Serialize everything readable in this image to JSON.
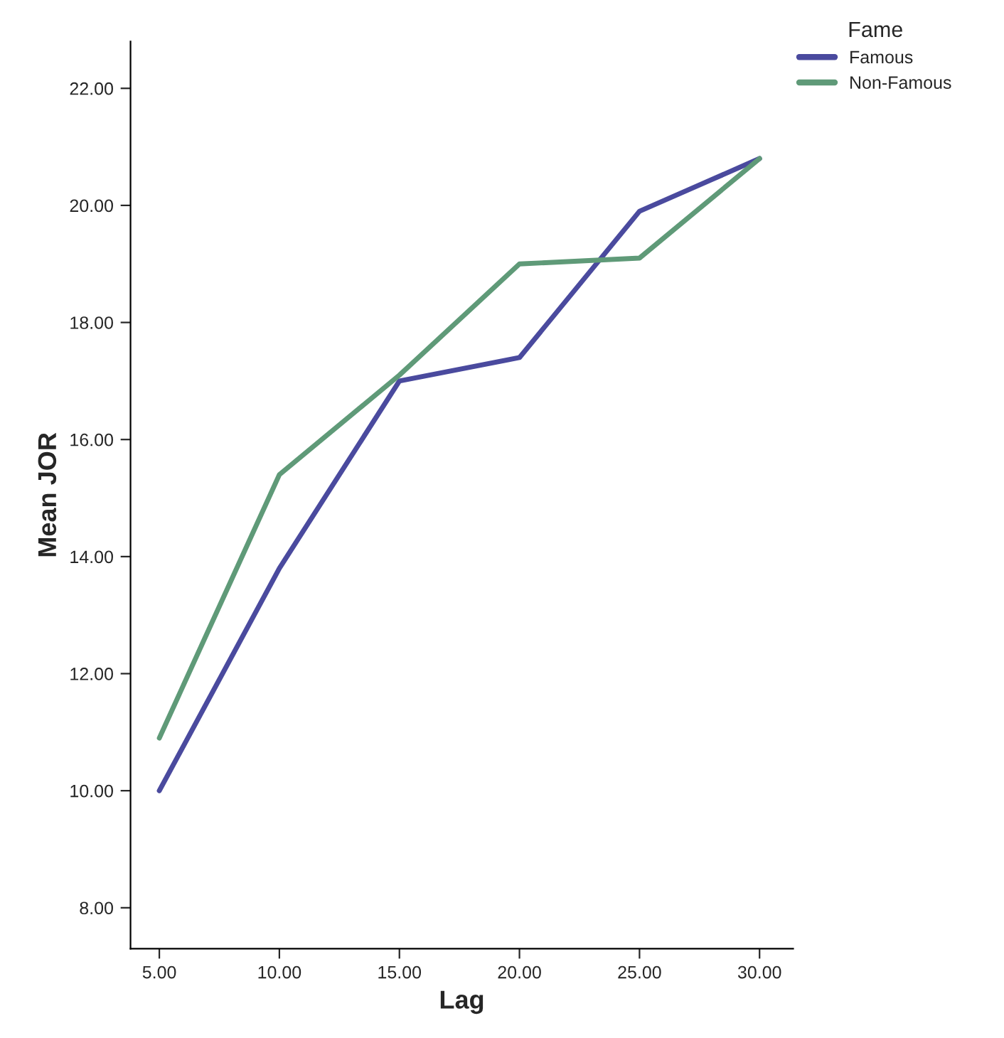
{
  "chart_data": {
    "type": "line",
    "xlabel": "Lag",
    "ylabel": "Mean JOR",
    "legend_title": "Fame",
    "x": [
      5,
      10,
      15,
      20,
      25,
      30
    ],
    "series": [
      {
        "name": "Famous",
        "color": "#4a4a9e",
        "values": [
          10.0,
          13.8,
          17.0,
          17.4,
          19.9,
          20.8
        ]
      },
      {
        "name": "Non-Famous",
        "color": "#5f9a78",
        "values": [
          10.9,
          15.4,
          17.1,
          19.0,
          19.1,
          20.8
        ]
      }
    ],
    "xlim": [
      3.8,
      31.4
    ],
    "ylim": [
      7.3,
      22.8
    ],
    "xticks": [
      {
        "value": 5,
        "label": "5.00"
      },
      {
        "value": 10,
        "label": "10.00"
      },
      {
        "value": 15,
        "label": "15.00"
      },
      {
        "value": 20,
        "label": "20.00"
      },
      {
        "value": 25,
        "label": "25.00"
      },
      {
        "value": 30,
        "label": "30.00"
      }
    ],
    "yticks": [
      {
        "value": 8,
        "label": "8.00"
      },
      {
        "value": 10,
        "label": "10.00"
      },
      {
        "value": 12,
        "label": "12.00"
      },
      {
        "value": 14,
        "label": "14.00"
      },
      {
        "value": 16,
        "label": "16.00"
      },
      {
        "value": 18,
        "label": "18.00"
      },
      {
        "value": 20,
        "label": "20.00"
      },
      {
        "value": 22,
        "label": "22.00"
      }
    ],
    "grid": false,
    "legend": "top right",
    "marker": "none",
    "line_style": "solid"
  }
}
